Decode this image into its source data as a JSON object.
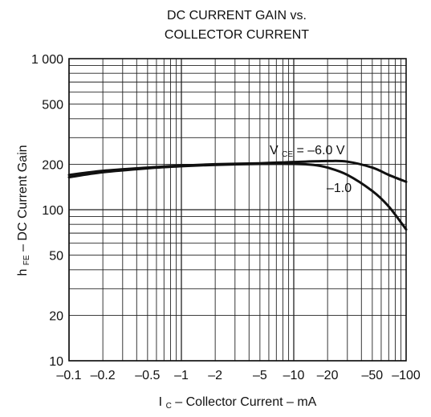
{
  "chart_data": {
    "type": "line",
    "title_line1": "DC CURRENT GAIN vs.",
    "title_line2": "COLLECTOR CURRENT",
    "xlabel": {
      "main_before_sub": "I",
      "sub": "C",
      "main_after_sub": " – Collector Current – mA"
    },
    "ylabel": {
      "main_before_sub": "h",
      "sub": "FE",
      "main_after_sub": " – DC Current Gain"
    },
    "xscale": "log",
    "yscale": "log",
    "xlim": [
      -0.1,
      -100
    ],
    "ylim": [
      10,
      1000
    ],
    "grid": true,
    "x_ticks": [
      {
        "value": -0.1,
        "label": "–0.1"
      },
      {
        "value": -0.2,
        "label": "–0.2"
      },
      {
        "value": -0.5,
        "label": "–0.5"
      },
      {
        "value": -1,
        "label": "–1"
      },
      {
        "value": -2,
        "label": "–2"
      },
      {
        "value": -5,
        "label": "–5"
      },
      {
        "value": -10,
        "label": "–10"
      },
      {
        "value": -20,
        "label": "–20"
      },
      {
        "value": -50,
        "label": "–50"
      },
      {
        "value": -100,
        "label": "–100"
      }
    ],
    "y_ticks": [
      {
        "value": 10,
        "label": "10"
      },
      {
        "value": 20,
        "label": "20"
      },
      {
        "value": 50,
        "label": "50"
      },
      {
        "value": 100,
        "label": "100"
      },
      {
        "value": 200,
        "label": "200"
      },
      {
        "value": 500,
        "label": "500"
      },
      {
        "value": 1000,
        "label": "1 000"
      }
    ],
    "series": [
      {
        "name": "VCE = –6.0 V",
        "label_parts": {
          "main": "V",
          "sub": "CE",
          "rest": " = –6.0 V"
        },
        "x": [
          -0.1,
          -0.2,
          -0.5,
          -1,
          -2,
          -5,
          -10,
          -20,
          -30,
          -50,
          -70,
          -100
        ],
        "y": [
          170,
          181,
          190,
          196,
          200,
          203,
          207,
          210,
          208,
          190,
          170,
          153
        ]
      },
      {
        "name": "–1.0",
        "label_parts": {
          "main": "–1.0",
          "sub": "",
          "rest": ""
        },
        "x": [
          -0.1,
          -0.2,
          -0.5,
          -1,
          -2,
          -5,
          -10,
          -15,
          -20,
          -30,
          -50,
          -70,
          -100
        ],
        "y": [
          164,
          177,
          188,
          194,
          198,
          201,
          201,
          198,
          190,
          170,
          133,
          105,
          74
        ]
      }
    ]
  }
}
